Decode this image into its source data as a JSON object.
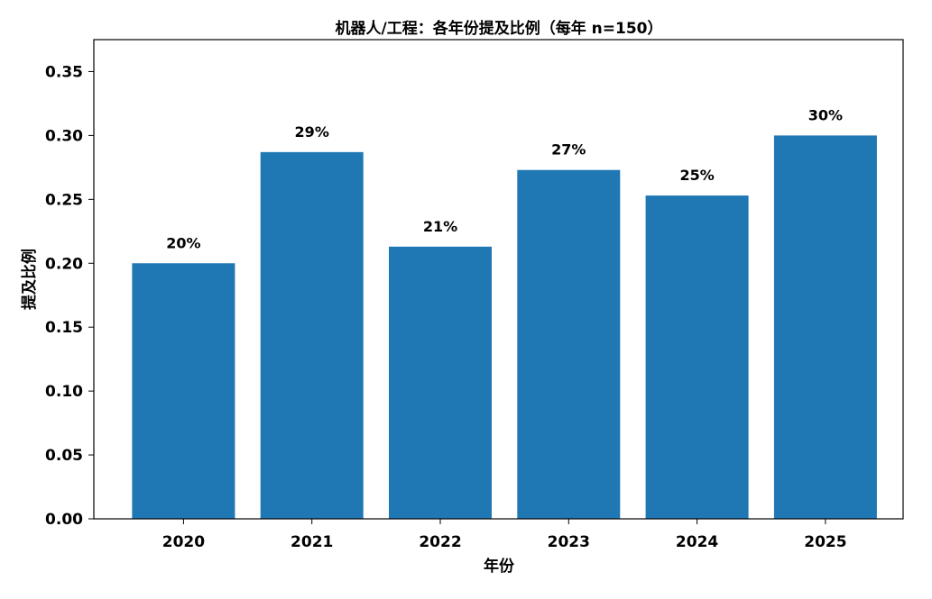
{
  "chart_data": {
    "type": "bar",
    "title": "机器人/工程：各年份提及比例（每年 n=150）",
    "xlabel": "年份",
    "ylabel": "提及比例",
    "categories": [
      "2020",
      "2021",
      "2022",
      "2023",
      "2024",
      "2025"
    ],
    "values": [
      0.2,
      0.287,
      0.213,
      0.273,
      0.253,
      0.3
    ],
    "data_labels": [
      "20%",
      "29%",
      "21%",
      "27%",
      "25%",
      "30%"
    ],
    "ylim": [
      0,
      0.375
    ],
    "yticks": [
      "0.00",
      "0.05",
      "0.10",
      "0.15",
      "0.20",
      "0.25",
      "0.30",
      "0.35"
    ],
    "grid": false,
    "bar_color": "#1f77b4"
  }
}
